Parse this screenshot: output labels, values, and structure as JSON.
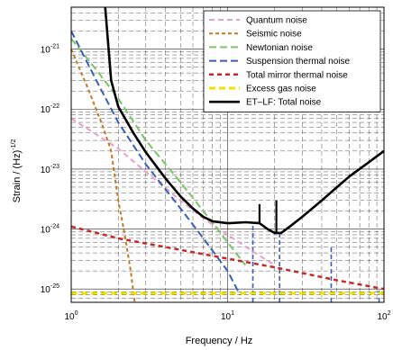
{
  "chart_data": {
    "type": "line",
    "xlabel": "Frequency / Hz",
    "ylabel_base": "Strain / (Hz)",
    "ylabel_exp": "-1/2",
    "xscale": "log",
    "yscale": "log",
    "xlim": [
      1,
      100
    ],
    "ylim": [
      6e-26,
      5e-21
    ],
    "grid": true,
    "legend_position": "top-right",
    "x_ticks": [
      {
        "value": 1,
        "base": "10",
        "exp": "0"
      },
      {
        "value": 10,
        "base": "10",
        "exp": "1"
      },
      {
        "value": 100,
        "base": "10",
        "exp": "2"
      }
    ],
    "y_ticks": [
      {
        "value": 1e-25,
        "base": "10",
        "exp": "-25"
      },
      {
        "value": 1e-24,
        "base": "10",
        "exp": "-24"
      },
      {
        "value": 1e-23,
        "base": "10",
        "exp": "-23"
      },
      {
        "value": 1e-22,
        "base": "10",
        "exp": "-22"
      },
      {
        "value": 1e-21,
        "base": "10",
        "exp": "-21"
      }
    ],
    "series": [
      {
        "name": "Quantum noise",
        "color": "#e8a0c8",
        "dash": "6,4",
        "width": 2,
        "x": [
          1,
          2,
          3,
          5,
          7,
          10,
          15,
          20
        ],
        "y": [
          7e-23,
          2.2e-23,
          9e-24,
          3e-24,
          1.5e-24,
          8e-25,
          4e-25,
          2.5e-25
        ]
      },
      {
        "name": "Seismic noise",
        "color": "#c07a28",
        "dash": "4,3",
        "width": 2,
        "x": [
          1,
          1.3,
          1.6,
          1.8,
          2.0,
          2.2,
          2.4,
          2.55
        ],
        "y": [
          1e-21,
          2e-22,
          5e-23,
          2e-23,
          3e-24,
          8e-25,
          2e-25,
          6e-26
        ]
      },
      {
        "name": "Newtonian noise",
        "color": "#7cc46a",
        "dash": "8,4",
        "width": 2,
        "x": [
          1,
          1.5,
          2,
          3,
          5,
          7,
          10,
          13
        ],
        "y": [
          1.5e-21,
          4e-22,
          1.5e-22,
          3e-23,
          6e-24,
          2e-24,
          6e-25,
          2.5e-25
        ]
      },
      {
        "name": "Suspension thermal noise",
        "color": "#3a5fb8",
        "dash": "8,4",
        "width": 2,
        "x": [
          1,
          1.5,
          2,
          3,
          5,
          7,
          10,
          12
        ],
        "y": [
          2e-21,
          2.5e-22,
          6e-23,
          1.2e-23,
          2.2e-24,
          7e-25,
          2e-25,
          8e-26
        ]
      },
      {
        "name": "Total mirror thermal noise",
        "color": "#c62828",
        "dash": "5,4",
        "width": 2.5,
        "x": [
          1,
          2,
          5,
          10,
          20,
          50,
          100
        ],
        "y": [
          1.1e-24,
          7e-25,
          4.5e-25,
          3.2e-25,
          2.3e-25,
          1.4e-25,
          1e-25
        ]
      },
      {
        "name": "Excess gas noise",
        "color": "#f2e200",
        "dash": "7,4",
        "width": 3,
        "x": [
          1,
          100
        ],
        "y": [
          8.5e-26,
          8.5e-26
        ]
      },
      {
        "name": "ET–LF: Total noise",
        "color": "#000000",
        "dash": "",
        "width": 2.6,
        "x": [
          1.65,
          1.8,
          2,
          2.5,
          3,
          4,
          5,
          6,
          7,
          8,
          10,
          13,
          16,
          18,
          20,
          22,
          25,
          30,
          40,
          50,
          60,
          80,
          100
        ],
        "y": [
          5e-21,
          3e-22,
          1.1e-22,
          4e-23,
          1.9e-23,
          7e-24,
          3.5e-24,
          2.2e-24,
          1.6e-24,
          1.35e-24,
          1.25e-24,
          1.3e-24,
          1.25e-24,
          1e-24,
          8.6e-25,
          8.6e-25,
          1.1e-24,
          1.6e-24,
          3e-24,
          5e-24,
          7.5e-24,
          1.3e-23,
          2e-23
        ]
      }
    ]
  }
}
